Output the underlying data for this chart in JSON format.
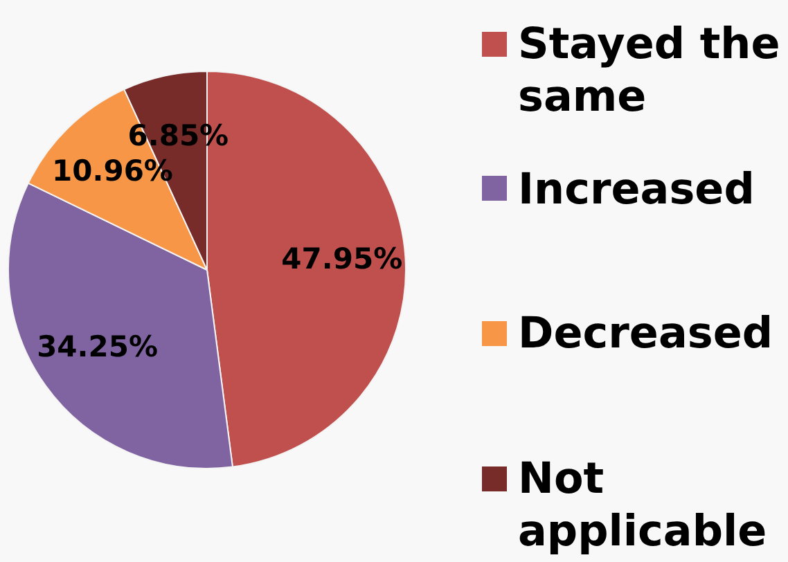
{
  "chart_data": {
    "type": "pie",
    "categories": [
      "Stayed the same",
      "Increased",
      "Decreased",
      "Not applicable"
    ],
    "values": [
      47.95,
      34.25,
      10.96,
      6.85
    ],
    "colors": [
      "#c0504d",
      "#8064a2",
      "#f79646",
      "#772c2a"
    ],
    "value_labels": [
      "47.95%",
      "34.25%",
      "10.96%",
      "6.85%"
    ],
    "legend": "right"
  }
}
